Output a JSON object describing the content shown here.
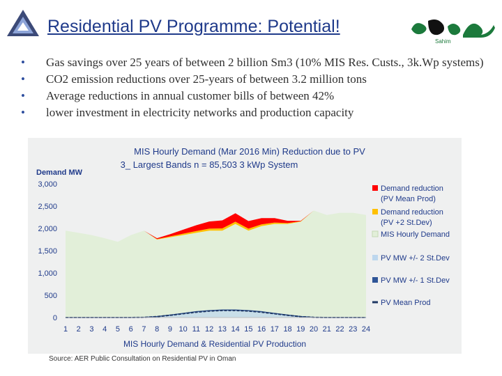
{
  "header": {
    "title": "Residential PV Programme: Potential!",
    "logo_text": "Sahim"
  },
  "bullets": [
    "Gas savings over 25 years of between 2 billion Sm3 (10% MIS Res. Custs., 3k.Wp systems)",
    "CO2 emission reductions over 25-years of between 3.2 million tons",
    "Average reductions in annual customer bills of between 42%",
    "lower investment in electricity networks and production capacity"
  ],
  "source": "Source: AER Public  Consultation on Residential  PV in Oman",
  "colors": {
    "title": "#1f3a8a",
    "chart_title": "#1f3a8a",
    "demand": "#e2efd9",
    "reduction_mean": "#ff0000",
    "reduction_2sd": "#ffc000",
    "pv_band2": "#bdd7ee",
    "pv_band1": "#2f5597",
    "pv_mean": "#1f3864"
  },
  "chart_data": {
    "type": "area",
    "title": "MIS Hourly Demand (Mar 2016 Min) Reduction due to PV",
    "subtitle": "3_ Largest Bands  n = 85,503   3  kWp System",
    "xlabel": "MIS Hourly Demand & Residential PV Production",
    "ylabel": "Demand MW",
    "ylim": [
      0,
      3000
    ],
    "yticks": [
      "0",
      "500",
      "1,000",
      "1,500",
      "2,000",
      "2,500",
      "3,000"
    ],
    "categories": [
      "1",
      "2",
      "3",
      "4",
      "5",
      "6",
      "7",
      "8",
      "9",
      "10",
      "11",
      "12",
      "13",
      "14",
      "15",
      "16",
      "17",
      "18",
      "19",
      "20",
      "21",
      "22",
      "23",
      "24"
    ],
    "series": [
      {
        "name": "MIS Hourly Demand",
        "values": [
          1950,
          1900,
          1850,
          1780,
          1700,
          1850,
          1950,
          1750,
          1800,
          1850,
          1900,
          1950,
          1950,
          2100,
          1950,
          2050,
          2100,
          2100,
          2150,
          2400,
          2300,
          2350,
          2350,
          2300
        ]
      },
      {
        "name": "Demand reduction (PV +2 St.Dev)",
        "values": [
          0,
          0,
          0,
          0,
          0,
          0,
          0,
          10,
          20,
          30,
          40,
          45,
          50,
          50,
          45,
          40,
          30,
          20,
          10,
          0,
          0,
          0,
          0,
          0
        ]
      },
      {
        "name": "Demand reduction (PV Mean Prod)",
        "values": [
          0,
          0,
          0,
          0,
          0,
          0,
          0,
          20,
          50,
          90,
          130,
          160,
          180,
          190,
          170,
          140,
          100,
          50,
          10,
          0,
          0,
          0,
          0,
          0
        ]
      },
      {
        "name": "PV MW +/- 2 St.Dev",
        "values": [
          0,
          0,
          0,
          0,
          0,
          0,
          5,
          25,
          60,
          100,
          140,
          165,
          180,
          180,
          165,
          140,
          100,
          60,
          25,
          5,
          0,
          0,
          0,
          0
        ]
      },
      {
        "name": "PV MW +/- 1 St.Dev",
        "values": [
          0,
          0,
          0,
          0,
          0,
          0,
          4,
          22,
          55,
          92,
          130,
          155,
          168,
          168,
          155,
          130,
          92,
          55,
          22,
          4,
          0,
          0,
          0,
          0
        ]
      },
      {
        "name": "PV Mean Prod",
        "values": [
          0,
          0,
          0,
          0,
          0,
          0,
          3,
          20,
          50,
          85,
          120,
          145,
          158,
          158,
          145,
          120,
          85,
          50,
          20,
          3,
          0,
          0,
          0,
          0
        ]
      }
    ],
    "legend": [
      "Demand reduction (PV Mean Prod)",
      "Demand reduction (PV +2 St.Dev)",
      "MIS Hourly Demand",
      "PV MW +/- 2 St.Dev",
      "PV MW +/- 1 St.Dev",
      "PV Mean Prod"
    ],
    "legend_position": "right"
  }
}
